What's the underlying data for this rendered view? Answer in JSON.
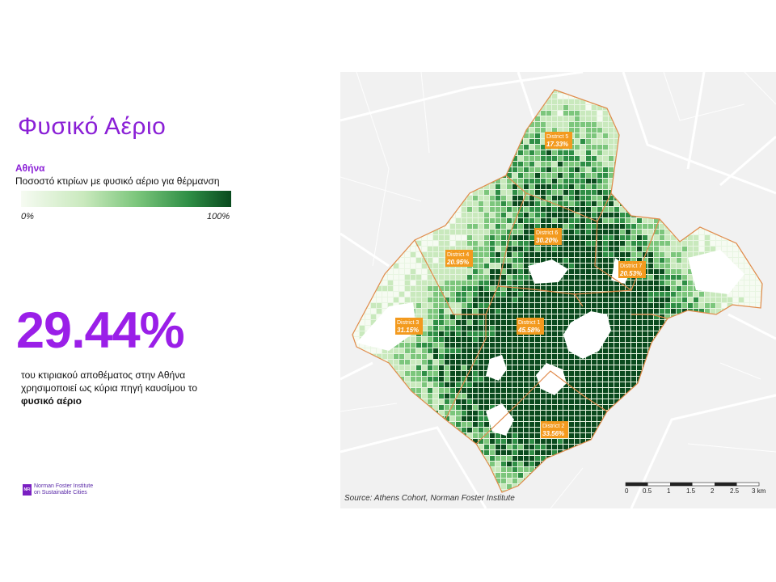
{
  "title": "Φυσικό Αέριο",
  "legend": {
    "city": "Αθήνα",
    "caption": "Ποσοστό κτιρίων με φυσικό αέριο για θέρμανση",
    "min_label": "0%",
    "max_label": "100%",
    "colors": [
      "#f6fbf2",
      "#c9e9bd",
      "#7cc67c",
      "#2e8e45",
      "#0a4a1e"
    ]
  },
  "headline": {
    "value": "29.44%",
    "text_line1": "του κτιριακού αποθέματος στην Αθήνα",
    "text_line2": "χρησιμοποιεί ως κύρια πηγή καυσίμου το",
    "text_bold": "φυσικό αέριο"
  },
  "logo": {
    "mark": "NFI",
    "line1": "Norman Foster Institute",
    "line2": "on Sustainable Cities"
  },
  "map": {
    "districts": [
      {
        "name": "District 1",
        "value": "45.58%"
      },
      {
        "name": "District 2",
        "value": "33.56%"
      },
      {
        "name": "District 3",
        "value": "31.15%"
      },
      {
        "name": "District 4",
        "value": "20.95%"
      },
      {
        "name": "District 5",
        "value": "17.33%"
      },
      {
        "name": "District 6",
        "value": "30.20%"
      },
      {
        "name": "District 7",
        "value": "20.53%"
      }
    ],
    "source": "Source: Athens Cohort, Norman Foster Institute",
    "scale": {
      "ticks": [
        "0",
        "0.5",
        "1",
        "1.5",
        "2",
        "2.5",
        "3 km"
      ]
    },
    "label_bg": "#f39a1e",
    "boundary_color": "#e08a4a"
  }
}
